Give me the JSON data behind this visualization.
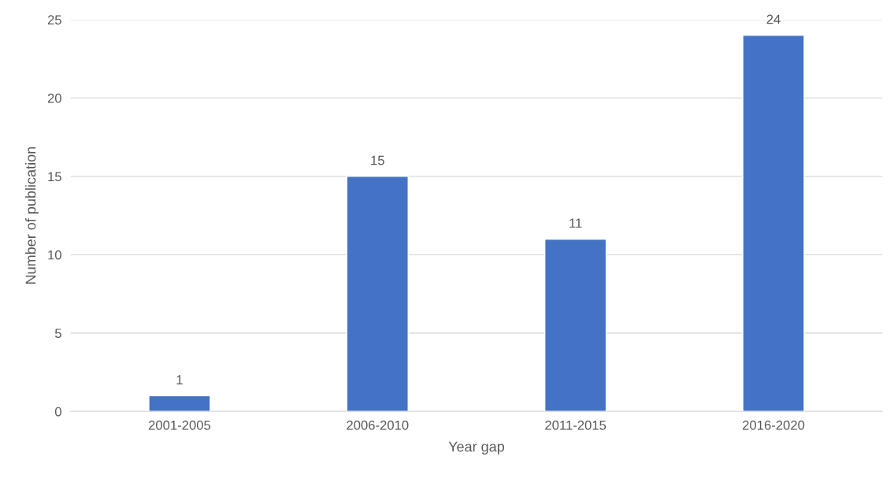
{
  "chart_data": {
    "type": "bar",
    "xlabel": "Year gap",
    "ylabel": "Number of publication",
    "categories": [
      "2001-2005",
      "2006-2010",
      "2011-2015",
      "2016-2020"
    ],
    "values": [
      1,
      15,
      11,
      24
    ],
    "color": "#4472c4",
    "ylim": [
      0,
      25
    ],
    "yticks": [
      0,
      5,
      10,
      15,
      20,
      25
    ],
    "grid": "y",
    "data_labels": true
  }
}
